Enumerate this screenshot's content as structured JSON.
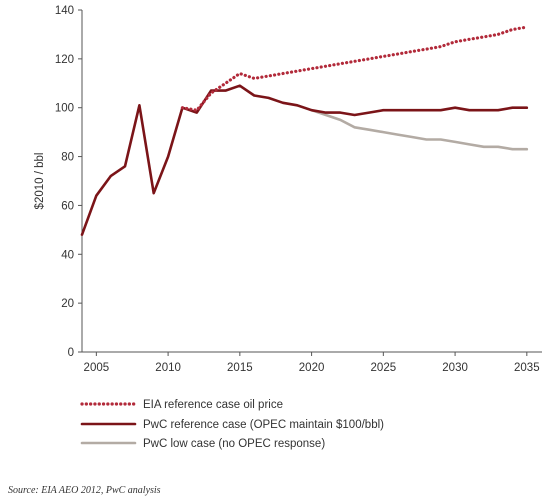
{
  "chart_data": {
    "type": "line",
    "ylabel": "$2010 / bbl",
    "ylim": [
      0,
      140
    ],
    "yticks": [
      0,
      20,
      40,
      60,
      80,
      100,
      120,
      140
    ],
    "xlim": [
      2004,
      2035.5
    ],
    "xticks": [
      2005,
      2010,
      2015,
      2020,
      2025,
      2030,
      2035
    ],
    "grid": false,
    "legend_position": "bottom-left",
    "series": [
      {
        "name": "EIA reference case oil price",
        "style": "dotted",
        "color": "#b22a3a",
        "x": [
          2011,
          2012,
          2013,
          2014,
          2015,
          2016,
          2017,
          2018,
          2019,
          2020,
          2021,
          2022,
          2023,
          2024,
          2025,
          2026,
          2027,
          2028,
          2029,
          2030,
          2031,
          2032,
          2033,
          2034,
          2035
        ],
        "y": [
          100,
          99,
          106,
          110,
          114,
          112,
          113,
          114,
          115,
          116,
          117,
          118,
          119,
          120,
          121,
          122,
          123,
          124,
          125,
          127,
          128,
          129,
          130,
          132,
          133
        ]
      },
      {
        "name": "PwC reference case (OPEC maintain $100/bbl)",
        "style": "solid",
        "color": "#7b1418",
        "x": [
          2004,
          2005,
          2006,
          2007,
          2008,
          2009,
          2010,
          2011,
          2012,
          2013,
          2014,
          2015,
          2016,
          2017,
          2018,
          2019,
          2020,
          2021,
          2022,
          2023,
          2024,
          2025,
          2026,
          2027,
          2028,
          2029,
          2030,
          2031,
          2032,
          2033,
          2034,
          2035
        ],
        "y": [
          48,
          64,
          72,
          76,
          101,
          65,
          80,
          100,
          98,
          107,
          107,
          109,
          105,
          104,
          102,
          101,
          99,
          98,
          98,
          97,
          98,
          99,
          99,
          99,
          99,
          99,
          100,
          99,
          99,
          99,
          100,
          100
        ]
      },
      {
        "name": "PwC low case (no OPEC response)",
        "style": "solid",
        "color": "#b3aba4",
        "x": [
          2019,
          2020,
          2021,
          2022,
          2023,
          2024,
          2025,
          2026,
          2027,
          2028,
          2029,
          2030,
          2031,
          2032,
          2033,
          2034,
          2035
        ],
        "y": [
          101,
          99,
          97,
          95,
          92,
          91,
          90,
          89,
          88,
          87,
          87,
          86,
          85,
          84,
          84,
          83,
          83
        ]
      }
    ]
  },
  "source": "Source: EIA AEO 2012, PwC analysis"
}
